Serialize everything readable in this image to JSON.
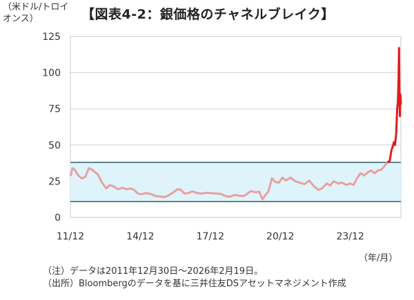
{
  "header": {
    "unit_label": "（米ドル/トロイ\nオンス）",
    "title": "【図表4-2：銀価格のチャネルブレイク】"
  },
  "footer": {
    "time_unit": "（年/月）",
    "note": "（注）データは2011年12月30日～2026年2月19日。",
    "source": "（出所）Bloombergのデータを基に三井住友DSアセットマネジメント作成"
  },
  "chart_data": {
    "type": "line",
    "ylim": [
      0,
      125
    ],
    "yticks": [
      0,
      25,
      50,
      75,
      100,
      125
    ],
    "xlim": [
      2011.96,
      2026.13
    ],
    "xticks": [
      {
        "label": "11/12",
        "value": 2011.96
      },
      {
        "label": "14/12",
        "value": 2014.96
      },
      {
        "label": "17/12",
        "value": 2017.96
      },
      {
        "label": "20/12",
        "value": 2020.96
      },
      {
        "label": "23/12",
        "value": 2023.96
      }
    ],
    "channel": {
      "upper": 38,
      "lower": 11,
      "band_color": "#dff3fb",
      "line_color": "#2e5a6b"
    },
    "series": [
      {
        "color_in_channel": "#e8a0a0",
        "color_breakout": "#e31b1b",
        "points": [
          [
            2011.96,
            28.5
          ],
          [
            2012.05,
            34.0
          ],
          [
            2012.15,
            33.0
          ],
          [
            2012.3,
            29.0
          ],
          [
            2012.45,
            27.0
          ],
          [
            2012.6,
            28.0
          ],
          [
            2012.75,
            34.0
          ],
          [
            2012.9,
            33.0
          ],
          [
            2013.0,
            31.5
          ],
          [
            2013.15,
            29.5
          ],
          [
            2013.3,
            24.5
          ],
          [
            2013.5,
            20.0
          ],
          [
            2013.65,
            22.5
          ],
          [
            2013.8,
            21.5
          ],
          [
            2014.0,
            19.5
          ],
          [
            2014.2,
            20.5
          ],
          [
            2014.35,
            19.5
          ],
          [
            2014.55,
            20.0
          ],
          [
            2014.7,
            19.0
          ],
          [
            2014.85,
            16.5
          ],
          [
            2015.0,
            16.0
          ],
          [
            2015.2,
            16.8
          ],
          [
            2015.4,
            16.2
          ],
          [
            2015.6,
            14.8
          ],
          [
            2015.8,
            14.5
          ],
          [
            2016.0,
            14.0
          ],
          [
            2016.15,
            15.0
          ],
          [
            2016.35,
            17.0
          ],
          [
            2016.55,
            19.5
          ],
          [
            2016.7,
            19.0
          ],
          [
            2016.85,
            16.5
          ],
          [
            2017.0,
            16.8
          ],
          [
            2017.2,
            18.0
          ],
          [
            2017.4,
            16.8
          ],
          [
            2017.6,
            16.5
          ],
          [
            2017.8,
            17.0
          ],
          [
            2018.0,
            16.8
          ],
          [
            2018.2,
            16.5
          ],
          [
            2018.4,
            16.3
          ],
          [
            2018.6,
            14.8
          ],
          [
            2018.8,
            14.3
          ],
          [
            2019.0,
            15.5
          ],
          [
            2019.2,
            15.0
          ],
          [
            2019.4,
            14.8
          ],
          [
            2019.55,
            16.5
          ],
          [
            2019.7,
            18.2
          ],
          [
            2019.9,
            17.3
          ],
          [
            2020.05,
            17.8
          ],
          [
            2020.2,
            12.5
          ],
          [
            2020.3,
            15.0
          ],
          [
            2020.45,
            18.0
          ],
          [
            2020.6,
            27.0
          ],
          [
            2020.75,
            24.5
          ],
          [
            2020.9,
            24.0
          ],
          [
            2021.05,
            27.5
          ],
          [
            2021.2,
            25.5
          ],
          [
            2021.4,
            27.5
          ],
          [
            2021.6,
            25.0
          ],
          [
            2021.8,
            24.0
          ],
          [
            2022.0,
            23.0
          ],
          [
            2022.2,
            25.5
          ],
          [
            2022.4,
            21.5
          ],
          [
            2022.6,
            19.0
          ],
          [
            2022.75,
            20.0
          ],
          [
            2022.95,
            23.5
          ],
          [
            2023.1,
            22.0
          ],
          [
            2023.25,
            25.0
          ],
          [
            2023.45,
            23.5
          ],
          [
            2023.6,
            24.0
          ],
          [
            2023.8,
            22.5
          ],
          [
            2023.95,
            23.5
          ],
          [
            2024.1,
            22.5
          ],
          [
            2024.25,
            27.0
          ],
          [
            2024.4,
            30.5
          ],
          [
            2024.55,
            29.0
          ],
          [
            2024.7,
            31.0
          ],
          [
            2024.85,
            32.5
          ],
          [
            2025.0,
            30.5
          ],
          [
            2025.15,
            32.5
          ],
          [
            2025.3,
            33.0
          ],
          [
            2025.45,
            36.0
          ],
          [
            2025.55,
            38.0
          ],
          [
            2025.65,
            39.0
          ],
          [
            2025.72,
            46.0
          ],
          [
            2025.78,
            49.0
          ],
          [
            2025.83,
            52.0
          ],
          [
            2025.88,
            50.0
          ],
          [
            2025.93,
            58.0
          ],
          [
            2025.97,
            75.0
          ],
          [
            2026.0,
            80.0
          ],
          [
            2026.03,
            95.0
          ],
          [
            2026.05,
            117.0
          ],
          [
            2026.07,
            80.0
          ],
          [
            2026.09,
            70.0
          ],
          [
            2026.11,
            85.0
          ],
          [
            2026.13,
            78.0
          ]
        ]
      }
    ]
  }
}
